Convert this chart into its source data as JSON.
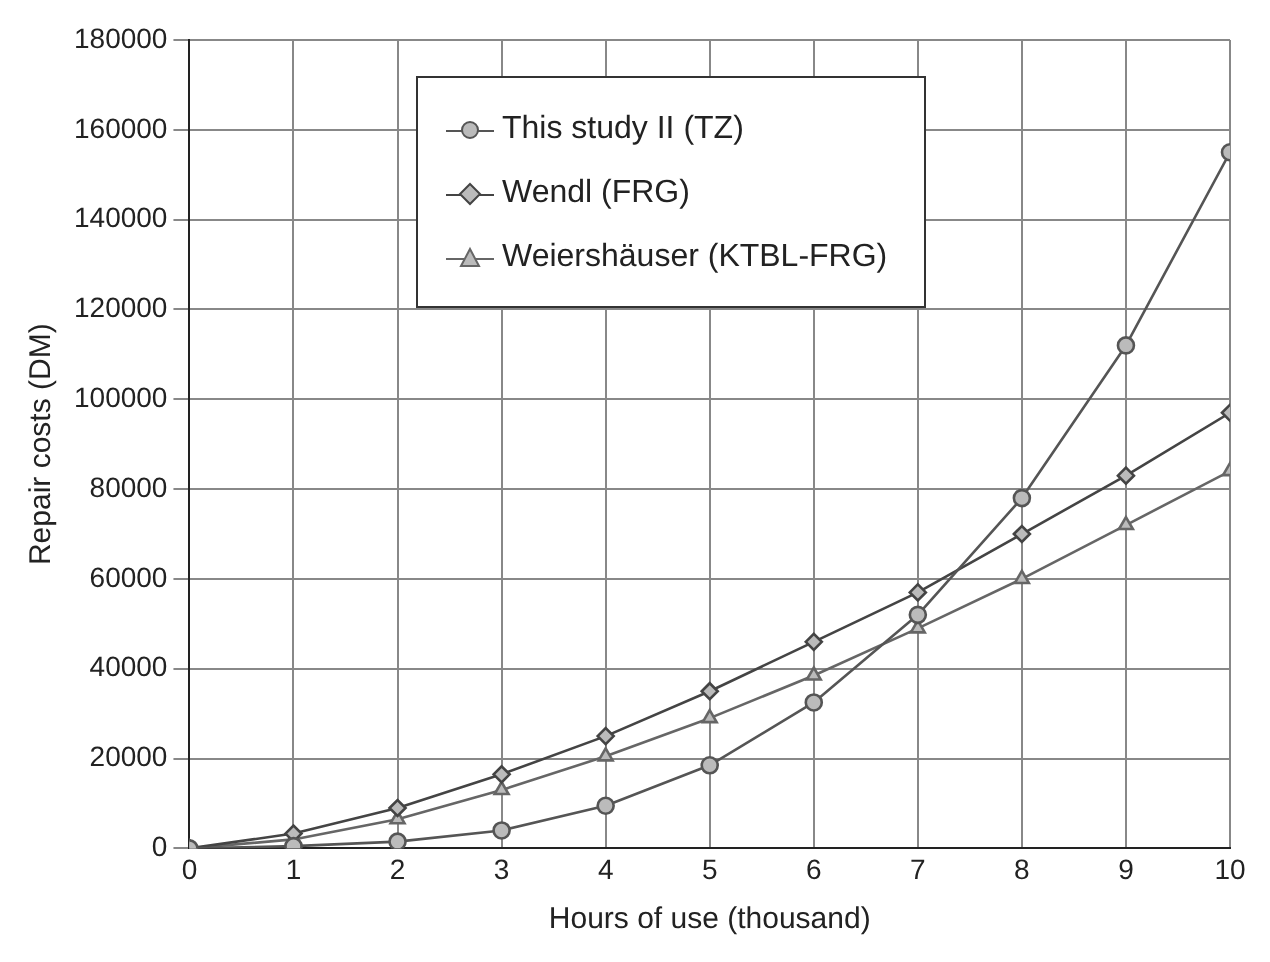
{
  "chart_data": {
    "type": "line",
    "xlabel": "Hours of use (thousand)",
    "ylabel": "Repair costs (DM)",
    "x": [
      0,
      1,
      2,
      3,
      4,
      5,
      6,
      7,
      8,
      9,
      10
    ],
    "xlim": [
      0,
      10
    ],
    "xticks": [
      0,
      1,
      2,
      3,
      4,
      5,
      6,
      7,
      8,
      9,
      10
    ],
    "ylim": [
      0,
      180000
    ],
    "yticks": [
      0,
      20000,
      40000,
      60000,
      80000,
      100000,
      120000,
      140000,
      160000,
      180000
    ],
    "grid": true,
    "legend": "top",
    "line_style": "solid",
    "series": [
      {
        "name": "This study II (TZ)",
        "color": "#555555",
        "marker": "circle",
        "values": [
          0,
          500,
          1500,
          4000,
          9500,
          18500,
          32500,
          52000,
          78000,
          112000,
          155000
        ]
      },
      {
        "name": "Wendl (FRG)",
        "color": "#444444",
        "marker": "diamond",
        "values": [
          0,
          3300,
          9000,
          16500,
          25000,
          35000,
          46000,
          57000,
          70000,
          83000,
          97000
        ]
      },
      {
        "name": "Weiershäuser (KTBL-FRG)",
        "color": "#666666",
        "marker": "triangle",
        "values": [
          0,
          2000,
          6500,
          13000,
          20500,
          29000,
          38500,
          49000,
          60000,
          72000,
          84000
        ]
      }
    ]
  }
}
